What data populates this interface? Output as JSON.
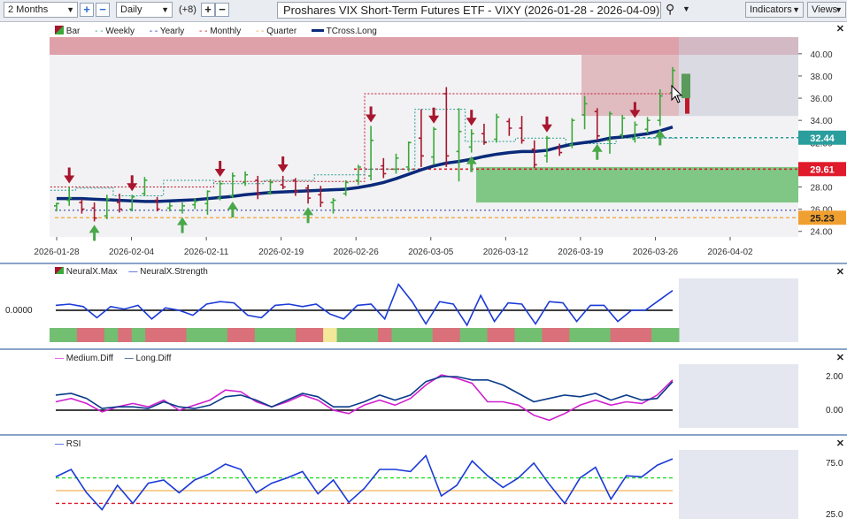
{
  "toolbar": {
    "period": "2 Months",
    "interval": "Daily",
    "bars_offset": "(+8)",
    "chart_title": "Proshares VIX Short-Term Futures ETF - VIXY (2026-01-28 - 2026-04-09)",
    "indicators_label": "Indicators",
    "views_label": "Views"
  },
  "main_legend": [
    "Bar",
    "Weekly",
    "Yearly",
    "Monthly",
    "Quarter",
    "TCross.Long"
  ],
  "colors": {
    "up": "#3aa83a",
    "down": "#a8162e",
    "tcross": "#0a2a7a",
    "weekly": "#2a9d8f",
    "yearly": "#1a2a9e",
    "monthly": "#c0182e",
    "quarter": "#f0a030"
  },
  "panels": {
    "neuralx": {
      "legend": [
        "NeuralX.Max",
        "NeuralX.Strength"
      ],
      "zero_label": "0.0000"
    },
    "diff": {
      "legend": [
        "Medium.Diff",
        "Long.Diff"
      ],
      "ticks": [
        "2.00",
        "0.00"
      ]
    },
    "rsi": {
      "legend": [
        "RSI"
      ],
      "ticks": [
        "75.0",
        "25.0"
      ]
    }
  },
  "chart_data": {
    "type": "candlestick",
    "x_ticks": [
      "2026-01-28",
      "2026-02-04",
      "2026-02-11",
      "2026-02-19",
      "2026-02-26",
      "2026-03-05",
      "2026-03-12",
      "2026-03-19",
      "2026-03-26",
      "2026-04-02"
    ],
    "y_ticks": [
      "24.00",
      "26.00",
      "28.00",
      "30.00",
      "32.00",
      "34.00",
      "36.00",
      "38.00",
      "40.00"
    ],
    "ylim": [
      23.5,
      41.5
    ],
    "price_labels": [
      {
        "value": 32.44,
        "text": "32.44",
        "color": "#2a9d9d"
      },
      {
        "value": 29.61,
        "text": "29.61",
        "color": "#e01a2a"
      },
      {
        "value": 25.23,
        "text": "25.23",
        "color": "#f0a030"
      }
    ],
    "bars": [
      {
        "o": 26.3,
        "h": 26.6,
        "l": 25.8,
        "c": 26.5
      },
      {
        "o": 26.8,
        "h": 28.0,
        "l": 26.3,
        "c": 27.0
      },
      {
        "o": 26.6,
        "h": 26.9,
        "l": 25.6,
        "c": 26.0
      },
      {
        "o": 26.1,
        "h": 26.6,
        "l": 24.9,
        "c": 25.2
      },
      {
        "o": 25.4,
        "h": 27.3,
        "l": 25.1,
        "c": 26.9
      },
      {
        "o": 26.6,
        "h": 27.4,
        "l": 25.7,
        "c": 26.0
      },
      {
        "o": 26.0,
        "h": 27.3,
        "l": 25.8,
        "c": 27.1
      },
      {
        "o": 27.4,
        "h": 28.9,
        "l": 27.2,
        "c": 28.6
      },
      {
        "o": 26.8,
        "h": 27.1,
        "l": 25.8,
        "c": 26.0
      },
      {
        "o": 26.1,
        "h": 26.6,
        "l": 25.8,
        "c": 26.3
      },
      {
        "o": 25.9,
        "h": 26.6,
        "l": 25.6,
        "c": 26.3
      },
      {
        "o": 26.4,
        "h": 27.0,
        "l": 26.0,
        "c": 26.7
      },
      {
        "o": 26.5,
        "h": 27.7,
        "l": 25.5,
        "c": 27.6
      },
      {
        "o": 27.0,
        "h": 28.6,
        "l": 26.8,
        "c": 28.3
      },
      {
        "o": 27.2,
        "h": 29.3,
        "l": 27.0,
        "c": 29.0
      },
      {
        "o": 28.4,
        "h": 29.4,
        "l": 28.1,
        "c": 29.1
      },
      {
        "o": 28.6,
        "h": 29.0,
        "l": 26.9,
        "c": 27.4
      },
      {
        "o": 27.5,
        "h": 28.7,
        "l": 27.3,
        "c": 28.4
      },
      {
        "o": 28.2,
        "h": 29.0,
        "l": 27.8,
        "c": 28.0
      },
      {
        "o": 28.6,
        "h": 28.8,
        "l": 27.2,
        "c": 27.6
      },
      {
        "o": 27.9,
        "h": 28.2,
        "l": 26.5,
        "c": 27.0
      },
      {
        "o": 27.3,
        "h": 28.1,
        "l": 26.2,
        "c": 26.6
      },
      {
        "o": 26.6,
        "h": 27.0,
        "l": 25.6,
        "c": 26.8
      },
      {
        "o": 27.4,
        "h": 28.6,
        "l": 27.2,
        "c": 28.4
      },
      {
        "o": 28.6,
        "h": 30.0,
        "l": 28.2,
        "c": 29.8
      },
      {
        "o": 29.0,
        "h": 33.5,
        "l": 28.6,
        "c": 32.2
      },
      {
        "o": 29.9,
        "h": 30.6,
        "l": 28.8,
        "c": 29.2
      },
      {
        "o": 29.6,
        "h": 31.0,
        "l": 29.2,
        "c": 30.6
      },
      {
        "o": 29.8,
        "h": 32.1,
        "l": 29.4,
        "c": 32.0
      },
      {
        "o": 32.4,
        "h": 35.0,
        "l": 29.8,
        "c": 30.8
      },
      {
        "o": 30.7,
        "h": 33.4,
        "l": 30.0,
        "c": 33.2
      },
      {
        "o": 36.4,
        "h": 37.0,
        "l": 29.8,
        "c": 30.8
      },
      {
        "o": 31.2,
        "h": 35.1,
        "l": 28.5,
        "c": 33.0
      },
      {
        "o": 31.6,
        "h": 33.2,
        "l": 31.1,
        "c": 32.8
      },
      {
        "o": 32.8,
        "h": 33.7,
        "l": 31.8,
        "c": 32.0
      },
      {
        "o": 32.3,
        "h": 34.6,
        "l": 32.0,
        "c": 34.3
      },
      {
        "o": 33.9,
        "h": 34.2,
        "l": 32.6,
        "c": 33.3
      },
      {
        "o": 33.3,
        "h": 34.4,
        "l": 31.9,
        "c": 32.2
      },
      {
        "o": 31.4,
        "h": 32.2,
        "l": 29.7,
        "c": 30.0
      },
      {
        "o": 30.8,
        "h": 32.6,
        "l": 30.2,
        "c": 32.4
      },
      {
        "o": 31.5,
        "h": 31.9,
        "l": 30.8,
        "c": 31.1
      },
      {
        "o": 31.8,
        "h": 34.2,
        "l": 31.5,
        "c": 34.0
      },
      {
        "o": 34.5,
        "h": 36.2,
        "l": 33.2,
        "c": 35.5
      },
      {
        "o": 34.8,
        "h": 35.1,
        "l": 32.2,
        "c": 32.6
      },
      {
        "o": 32.2,
        "h": 34.8,
        "l": 31.0,
        "c": 34.6
      },
      {
        "o": 32.7,
        "h": 34.5,
        "l": 32.4,
        "c": 34.2
      },
      {
        "o": 32.3,
        "h": 33.9,
        "l": 32.0,
        "c": 33.6
      },
      {
        "o": 33.2,
        "h": 34.3,
        "l": 32.8,
        "c": 34.0
      },
      {
        "o": 34.0,
        "h": 36.8,
        "l": 33.5,
        "c": 36.2
      },
      {
        "o": 36.5,
        "h": 38.8,
        "l": 35.9,
        "c": 38.5
      }
    ],
    "tcross_long": [
      26.95,
      26.95,
      26.95,
      26.9,
      26.85,
      26.8,
      26.75,
      26.7,
      26.7,
      26.75,
      26.8,
      26.85,
      26.95,
      27.05,
      27.15,
      27.3,
      27.4,
      27.5,
      27.55,
      27.6,
      27.65,
      27.7,
      27.75,
      27.8,
      27.95,
      28.15,
      28.4,
      28.75,
      29.15,
      29.55,
      29.9,
      30.15,
      30.3,
      30.5,
      30.75,
      30.95,
      31.1,
      31.2,
      31.2,
      31.3,
      31.6,
      31.85,
      32.0,
      32.15,
      32.4,
      32.5,
      32.65,
      32.8,
      33.05,
      33.4
    ],
    "weekly_level": [
      27.7,
      27.7,
      27.9,
      27.9,
      27.9,
      27.2,
      27.2,
      27.2,
      27.2,
      28.6,
      28.6,
      28.6,
      28.6,
      28.3,
      28.3,
      28.3,
      28.3,
      28.6,
      28.6,
      28.6,
      28.6,
      29.1,
      29.1,
      29.1,
      29.1,
      29.6,
      29.6,
      29.6,
      29.6,
      35.0,
      35.0,
      35.0,
      35.0,
      32.1,
      32.1,
      32.1,
      32.1,
      32.4,
      32.4,
      32.4,
      32.4,
      31.9,
      31.9,
      31.9,
      31.9,
      32.4,
      32.4,
      32.4,
      32.4,
      32.4
    ],
    "monthly_level": [
      28.0,
      28.0,
      28.0,
      28.0,
      28.0,
      28.0,
      28.0,
      28.0,
      28.0,
      28.0,
      28.0,
      28.0,
      28.0,
      28.5,
      28.5,
      28.5,
      28.5,
      28.5,
      28.5,
      28.5,
      28.5,
      28.5,
      28.5,
      28.5,
      28.5,
      36.4,
      36.4,
      36.4,
      36.4,
      36.4,
      36.4,
      36.4,
      36.4,
      36.4,
      36.4,
      36.4,
      36.4,
      36.4,
      36.4,
      36.4,
      36.4,
      36.4,
      36.4,
      36.4,
      36.4,
      36.4,
      36.4,
      36.4,
      36.4,
      36.4
    ],
    "yearly_level": 25.9,
    "quarter_level": 25.23,
    "red_level": 29.61,
    "down_arrows": [
      1,
      6,
      13,
      18,
      25,
      30,
      33,
      39,
      46
    ],
    "up_arrows": [
      3,
      10,
      14,
      20,
      33,
      43,
      48
    ],
    "neuralx_strength": [
      0.4,
      0.5,
      0.3,
      -0.6,
      0.3,
      0.1,
      0.4,
      -0.7,
      0.2,
      0.0,
      -0.4,
      0.5,
      0.7,
      0.6,
      -0.4,
      -0.6,
      0.4,
      0.5,
      0.3,
      0.5,
      -0.3,
      -0.7,
      0.4,
      0.5,
      -0.7,
      2.1,
      0.7,
      -1.1,
      0.7,
      0.5,
      -1.2,
      1.2,
      -0.9,
      0.6,
      0.5,
      -1.1,
      0.7,
      0.6,
      -0.9,
      0.4,
      0.4,
      -0.9,
      0.0,
      0.0,
      0.8,
      1.6
    ],
    "neuralx_max_blocks": [
      "g",
      "g",
      "r",
      "r",
      "g",
      "r",
      "g",
      "r",
      "r",
      "r",
      "g",
      "g",
      "g",
      "r",
      "r",
      "g",
      "g",
      "g",
      "r",
      "r",
      "y",
      "g",
      "g",
      "g",
      "r",
      "g",
      "g",
      "g",
      "r",
      "r",
      "g",
      "g",
      "r",
      "r",
      "g",
      "g",
      "r",
      "r",
      "g",
      "g",
      "g",
      "r",
      "r",
      "r",
      "g",
      "g"
    ],
    "medium_diff": [
      0.5,
      0.7,
      0.4,
      -0.1,
      0.2,
      0.4,
      0.2,
      0.6,
      0.0,
      0.3,
      0.6,
      1.2,
      1.1,
      0.5,
      0.2,
      0.5,
      0.9,
      0.6,
      0.0,
      -0.2,
      0.3,
      0.6,
      0.3,
      0.7,
      1.5,
      2.1,
      1.9,
      1.6,
      0.5,
      0.5,
      0.3,
      -0.3,
      -0.6,
      -0.2,
      0.3,
      0.6,
      0.3,
      0.5,
      0.4,
      0.9,
      1.8
    ],
    "long_diff": [
      0.9,
      1.0,
      0.7,
      0.1,
      0.2,
      0.2,
      0.1,
      0.5,
      0.2,
      0.1,
      0.3,
      0.8,
      0.9,
      0.6,
      0.2,
      0.6,
      1.0,
      0.8,
      0.2,
      0.2,
      0.5,
      0.9,
      0.6,
      0.9,
      1.7,
      2.0,
      2.0,
      1.8,
      1.8,
      1.5,
      1.0,
      0.5,
      0.7,
      0.9,
      0.8,
      1.0,
      0.6,
      0.9,
      0.6,
      0.7,
      1.7
    ],
    "rsi": [
      63,
      70,
      48,
      32,
      55,
      38,
      57,
      60,
      48,
      60,
      66,
      75,
      70,
      48,
      57,
      62,
      68,
      47,
      60,
      39,
      52,
      70,
      70,
      68,
      83,
      45,
      55,
      78,
      64,
      53,
      62,
      76,
      56,
      38,
      62,
      72,
      42,
      64,
      63,
      74,
      80
    ]
  }
}
